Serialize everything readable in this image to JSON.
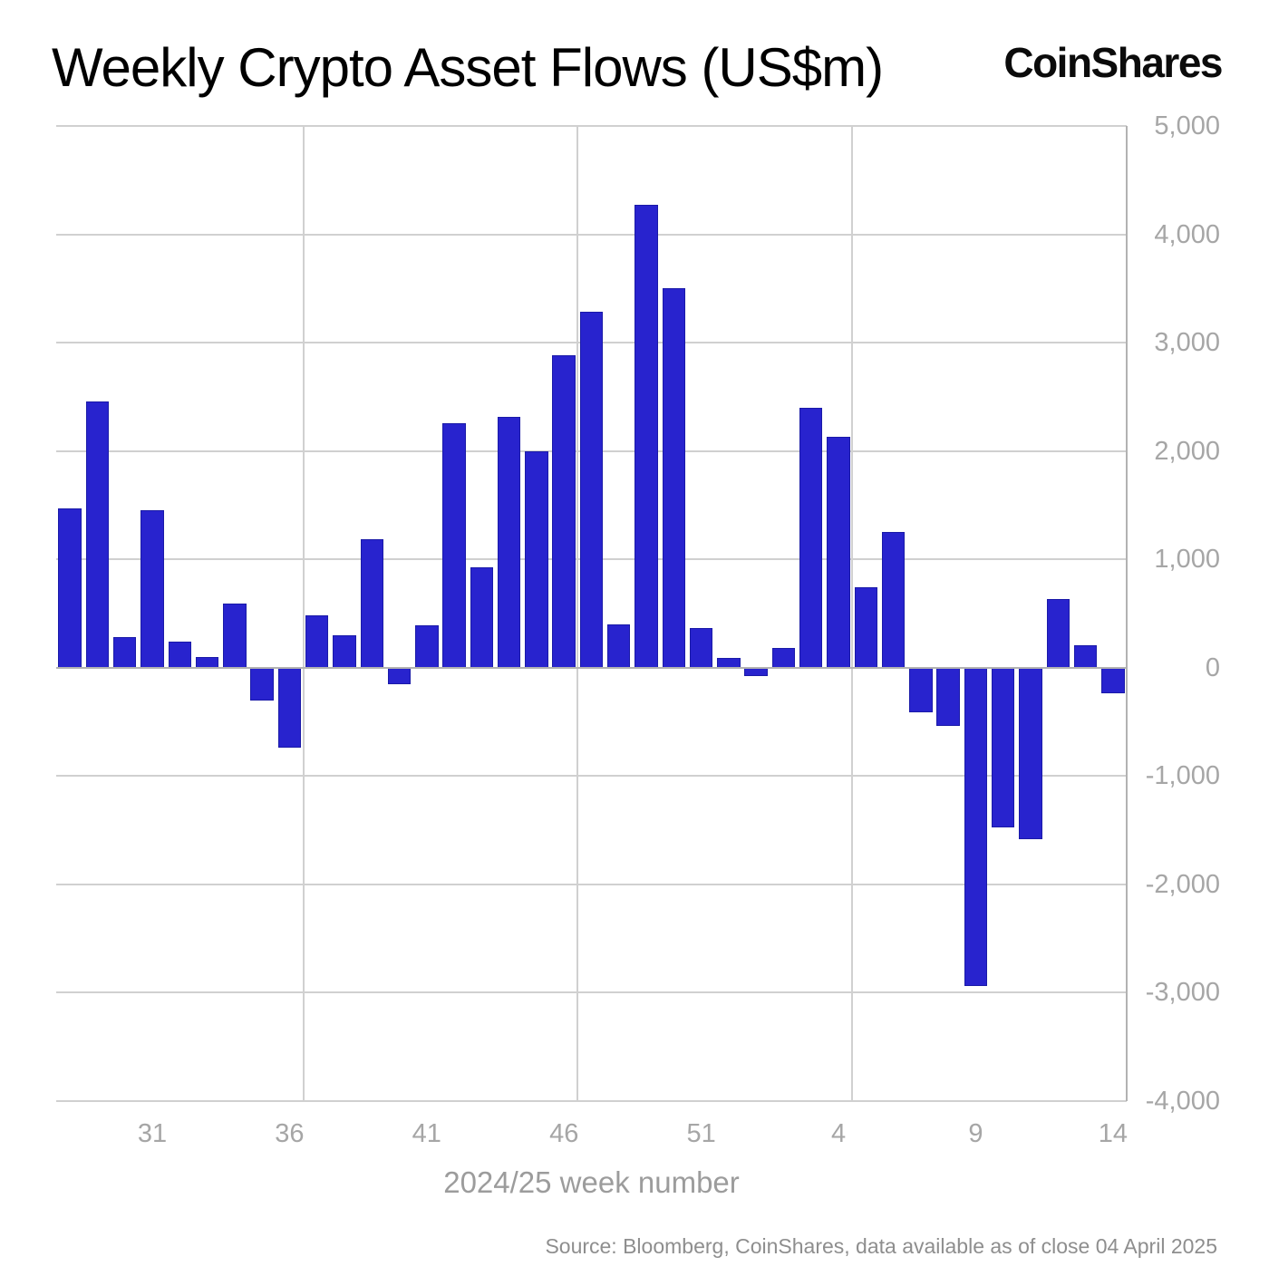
{
  "logo": {
    "text": "CoinShares"
  },
  "colors": {
    "bar_fill": "#2823ce",
    "bar_border": "#1a1aa8",
    "grid": "#d0d0d0",
    "zero_line": "#b2b2b2",
    "axis_line": "#b2b2b2",
    "tick_label": "#a6a6a6",
    "axis_title": "#9c9c9c",
    "title": "#000000",
    "source": "#8e8e8e"
  },
  "chart_data": {
    "type": "bar",
    "title": "Weekly Crypto Asset Flows (US$m)",
    "xlabel": "2024/25 week number",
    "ylabel": "",
    "ylim": [
      -4000,
      5000
    ],
    "ytick_step": 1000,
    "grid": true,
    "legend_position": "none",
    "source": "Source: Bloomberg, CoinShares, data available as of close 04 April 2025",
    "categories": [
      "28",
      "29",
      "30",
      "31",
      "32",
      "33",
      "34",
      "35",
      "36",
      "37",
      "38",
      "39",
      "40",
      "41",
      "42",
      "43",
      "44",
      "45",
      "46",
      "47",
      "48",
      "49",
      "50",
      "51",
      "52",
      "1",
      "2",
      "3",
      "4",
      "5",
      "6",
      "7",
      "8",
      "9",
      "10",
      "11",
      "12",
      "13",
      "14"
    ],
    "values": [
      1470,
      2455,
      280,
      1450,
      240,
      100,
      590,
      -300,
      -740,
      480,
      300,
      1190,
      -150,
      390,
      2255,
      925,
      2315,
      2000,
      2885,
      3285,
      400,
      4270,
      3500,
      365,
      90,
      -80,
      180,
      2400,
      2130,
      740,
      1250,
      -415,
      -535,
      -2935,
      -1475,
      -1585,
      635,
      205,
      -235
    ],
    "yticks": [
      {
        "value": 5000,
        "label": "5,000"
      },
      {
        "value": 4000,
        "label": "4,000"
      },
      {
        "value": 3000,
        "label": "3,000"
      },
      {
        "value": 2000,
        "label": "2,000"
      },
      {
        "value": 1000,
        "label": "1,000"
      },
      {
        "value": 0,
        "label": "0"
      },
      {
        "value": -1000,
        "label": "-1,000"
      },
      {
        "value": -2000,
        "label": "-2,000"
      },
      {
        "value": -3000,
        "label": "-3,000"
      },
      {
        "value": -4000,
        "label": "-4,000"
      }
    ],
    "xticks": [
      {
        "category": "31",
        "label": "31"
      },
      {
        "category": "36",
        "label": "36"
      },
      {
        "category": "41",
        "label": "41"
      },
      {
        "category": "46",
        "label": "46"
      },
      {
        "category": "51",
        "label": "51"
      },
      {
        "category": "4",
        "label": "4"
      },
      {
        "category": "9",
        "label": "9"
      },
      {
        "category": "14",
        "label": "14"
      }
    ],
    "x_gridlines_after": [
      "36",
      "46",
      "4"
    ]
  }
}
